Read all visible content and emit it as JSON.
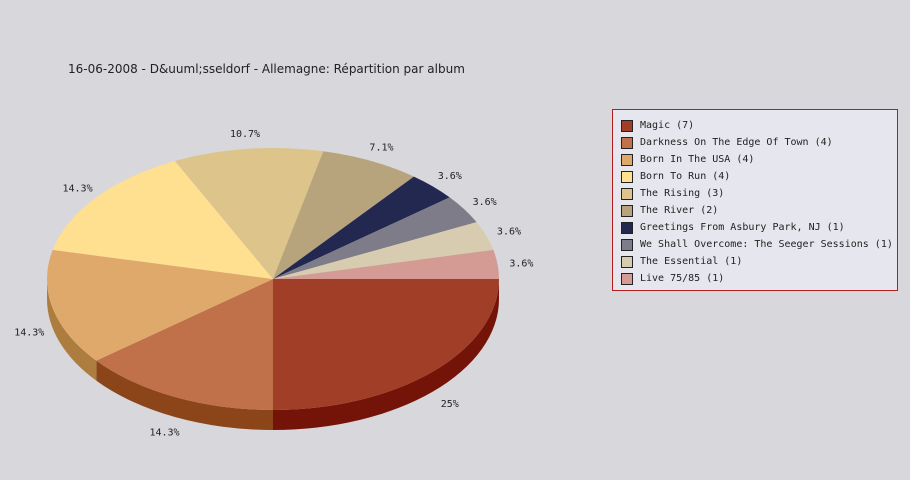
{
  "chart_data": {
    "type": "pie",
    "title": "16-06-2008 - D&uuml;sseldorf - Allemagne:  Répartition par album",
    "slices": [
      {
        "label": "Magic (7)",
        "value": 7,
        "pct_label": "25%",
        "color": "#a03e28",
        "side": "#741408"
      },
      {
        "label": "Darkness On The Edge Of Town (4)",
        "value": 4,
        "pct_label": "14.3%",
        "color": "#c0714a",
        "side": "#8b4519"
      },
      {
        "label": "Born In The USA (4)",
        "value": 4,
        "pct_label": "14.3%",
        "color": "#e0a96c",
        "side": "#ad7d3f"
      },
      {
        "label": "Born To Run (4)",
        "value": 4,
        "pct_label": "14.3%",
        "color": "#ffdf90",
        "side": "#c9a85e"
      },
      {
        "label": "The Rising (3)",
        "value": 3,
        "pct_label": "10.7%",
        "color": "#dcc48a",
        "side": "#a8925a"
      },
      {
        "label": "The River (2)",
        "value": 2,
        "pct_label": "7.1%",
        "color": "#b8a47c",
        "side": "#8a7752"
      },
      {
        "label": "Greetings From Asbury Park, NJ (1)",
        "value": 1,
        "pct_label": "3.6%",
        "color": "#232850",
        "side": "#10142e"
      },
      {
        "label": "We Shall Overcome: The Seeger Sessions (1)",
        "value": 1,
        "pct_label": "3.6%",
        "color": "#7d7c88",
        "side": "#55545e"
      },
      {
        "label": "The Essential (1)",
        "value": 1,
        "pct_label": "3.6%",
        "color": "#d8ccb0",
        "side": "#a99e84"
      },
      {
        "label": "Live 75/85 (1)",
        "value": 1,
        "pct_label": "3.6%",
        "color": "#d49a94",
        "side": "#a06a64"
      }
    ],
    "legend_position": "right"
  }
}
